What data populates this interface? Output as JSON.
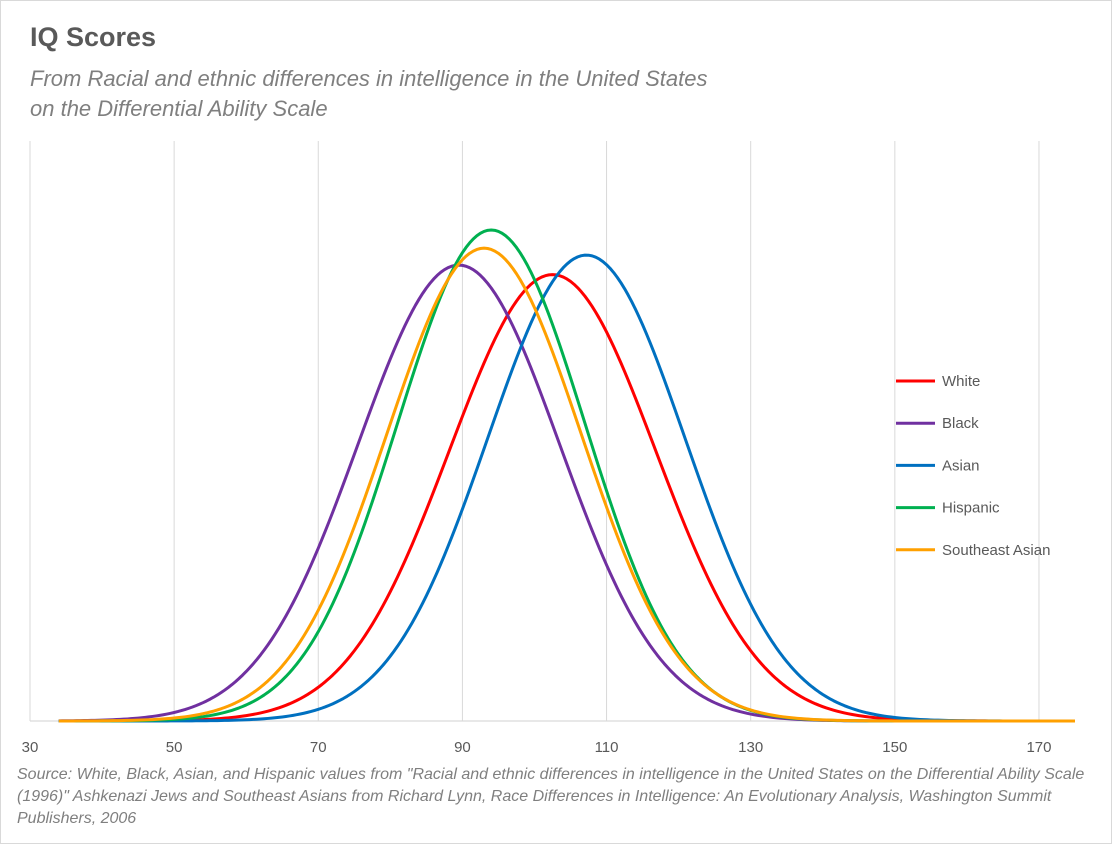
{
  "chart_data": {
    "type": "line",
    "title": "IQ Scores",
    "subtitle": "From Racial and ethnic differences in intelligence in the United States on the Differential Ability Scale",
    "xlabel": "",
    "ylabel": "",
    "xlim": [
      30,
      175
    ],
    "x_ticks": [
      "30",
      "50",
      "70",
      "90",
      "110",
      "130",
      "150",
      "170"
    ],
    "x_tick_values": [
      30,
      50,
      70,
      90,
      110,
      130,
      150,
      170
    ],
    "grid": "vertical",
    "legend_position": "right",
    "curve_x_range": [
      34,
      175
    ],
    "series": [
      {
        "name": "White",
        "color": "#ff0000",
        "mean": 102.5,
        "sd": 14.3
      },
      {
        "name": "Black",
        "color": "#7030a0",
        "mean": 89.5,
        "sd": 14.0
      },
      {
        "name": "Asian",
        "color": "#0070c0",
        "mean": 107.2,
        "sd": 13.7
      },
      {
        "name": "Hispanic",
        "color": "#00b050",
        "mean": 94.0,
        "sd": 13.0
      },
      {
        "name": "Southeast Asian",
        "color": "#ffa000",
        "mean": 93.0,
        "sd": 13.5
      }
    ],
    "source": "Source: White, Black, Asian, and Hispanic values from \"Racial and ethnic differences in intelligence in the United States on the Differential Ability Scale (1996)\" Ashkenazi Jews and Southeast Asians from Richard Lynn, Race Differences in Intelligence: An Evolutionary Analysis, Washington Summit Publishers, 2006"
  }
}
